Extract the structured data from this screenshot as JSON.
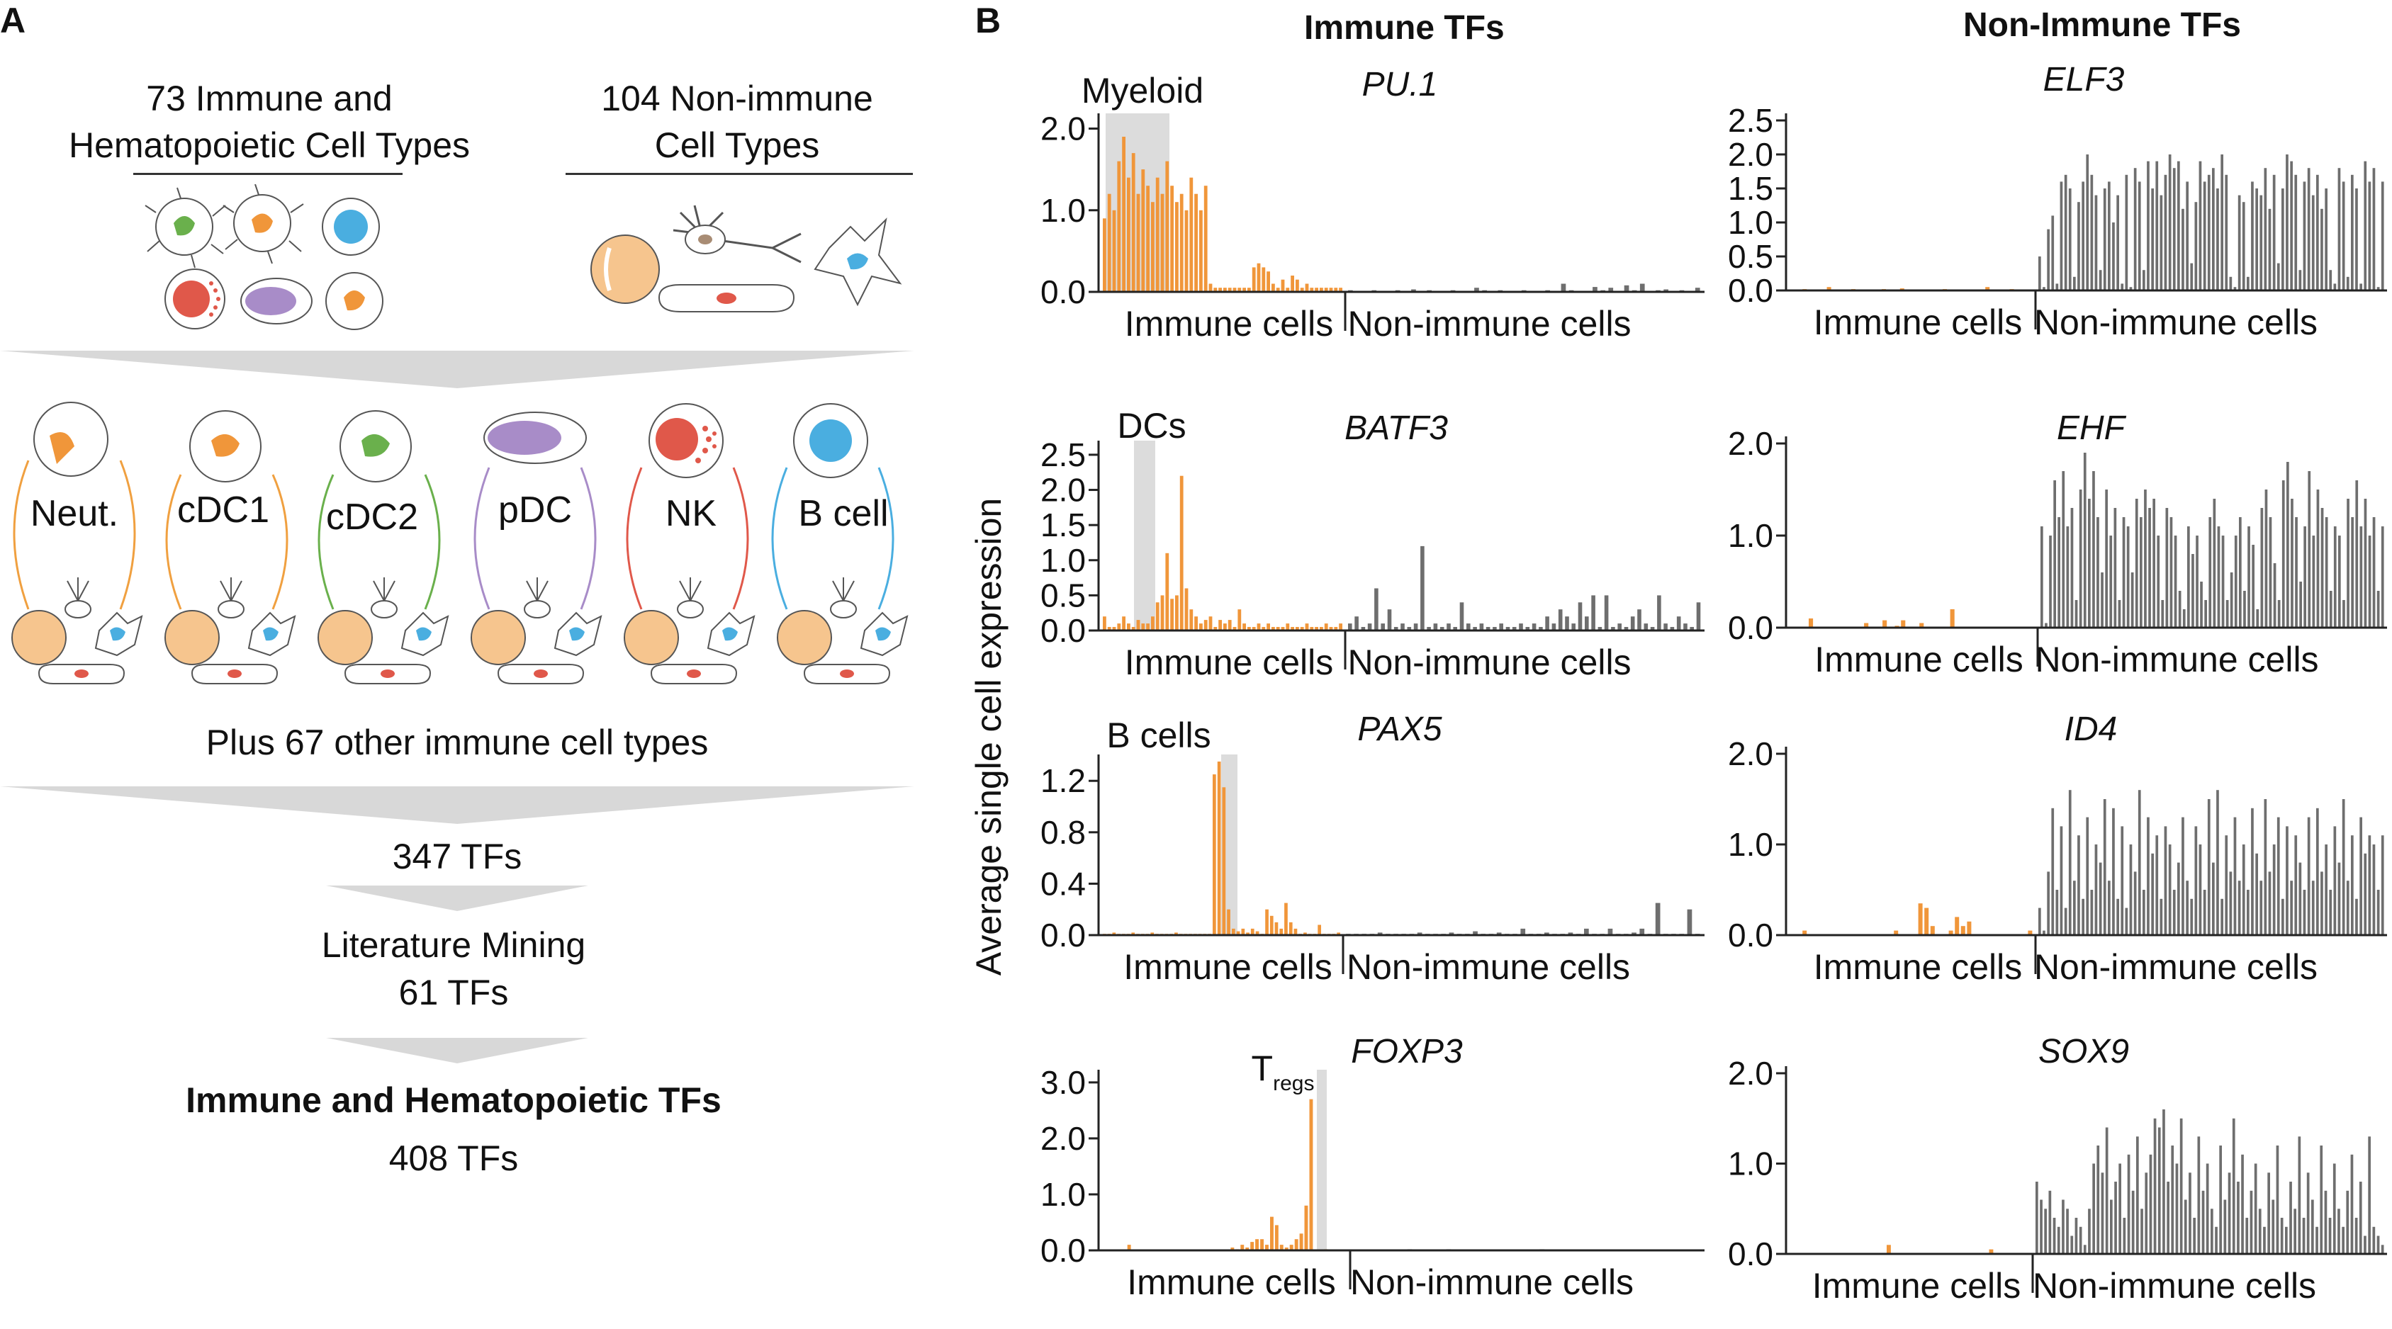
{
  "panel_a": {
    "letter": "A",
    "immune_title": "73 Immune and\nHematopoietic Cell Types",
    "nonimmune_title": "104 Non-immune\nCell Types",
    "cell_types": [
      "Neut.",
      "cDC1",
      "cDC2",
      "pDC",
      "NK",
      "B cell"
    ],
    "plus_other": "Plus 67 other immune cell types",
    "step1": "347 TFs",
    "step2a": "Literature Mining",
    "step2b": "61 TFs",
    "final_title": "Immune and Hematopoietic TFs",
    "final_count": "408 TFs",
    "colors": {
      "orange": "#f0a040",
      "green": "#6ab04c",
      "purple": "#a88cc8",
      "red": "#e0584a",
      "blue": "#4aaee0",
      "grey_arrow": "#d8d8d8"
    }
  },
  "panel_b": {
    "letter": "B",
    "col_immune": "Immune TFs",
    "col_nonimmune": "Non-Immune TFs",
    "y_axis_label": "Average single cell expression",
    "x_immune": "Immune cells",
    "x_nonimmune": "Non-immune cells",
    "colors": {
      "immune": "#f0963a",
      "nonimmune": "#6e6e6e",
      "highlight": "#dcdcdc"
    }
  },
  "chart_data": [
    {
      "type": "bar",
      "gene": "PU.1",
      "highlight": "Myeloid",
      "yticks": [
        "2.0",
        "1.0",
        "0.0"
      ],
      "ylim": [
        0,
        2.1
      ],
      "immune_values": [
        0.9,
        1.2,
        1.0,
        1.6,
        1.9,
        1.4,
        1.7,
        1.2,
        1.5,
        1.3,
        1.1,
        1.4,
        1.2,
        1.6,
        1.3,
        1.1,
        1.2,
        1.0,
        1.4,
        1.2,
        1.0,
        1.3,
        0.1,
        0.05,
        0.05,
        0.05,
        0.05,
        0.05,
        0.05,
        0.05,
        0.05,
        0.3,
        0.35,
        0.3,
        0.25,
        0.1,
        0.05,
        0.15,
        0.05,
        0.2,
        0.15,
        0.05,
        0.1,
        0.05,
        0.05,
        0.05,
        0.05,
        0.05,
        0.05,
        0.05
      ],
      "nonimmune_values": [
        0.02,
        0.01,
        0.01,
        0.02,
        0.01,
        0.01,
        0.02,
        0.01,
        0.03,
        0.01,
        0.02,
        0.01,
        0.01,
        0.02,
        0.01,
        0.01,
        0.05,
        0.02,
        0.01,
        0.02,
        0.01,
        0.01,
        0.02,
        0.01,
        0.01,
        0.02,
        0.01,
        0.1,
        0.02,
        0.01,
        0.01,
        0.06,
        0.02,
        0.05,
        0.01,
        0.08,
        0.02,
        0.1,
        0.01,
        0.02,
        0.03,
        0.01,
        0.02,
        0.01,
        0.05
      ]
    },
    {
      "type": "bar",
      "gene": "BATF3",
      "highlight": "DCs",
      "yticks": [
        "2.5",
        "2.0",
        "1.5",
        "1.0",
        "0.5",
        "0.0"
      ],
      "ylim": [
        0,
        2.6
      ],
      "immune_values": [
        0.2,
        0.05,
        0.05,
        0.1,
        0.2,
        0.1,
        0.05,
        0.15,
        0.1,
        0.1,
        0.2,
        0.4,
        0.5,
        1.1,
        0.45,
        0.5,
        2.2,
        0.6,
        0.3,
        0.2,
        0.1,
        0.15,
        0.2,
        0.05,
        0.15,
        0.1,
        0.15,
        0.05,
        0.3,
        0.1,
        0.05,
        0.05,
        0.1,
        0.05,
        0.1,
        0.05,
        0.05,
        0.05,
        0.1,
        0.05,
        0.05,
        0.05,
        0.1,
        0.05,
        0.05,
        0.05,
        0.1,
        0.05,
        0.05,
        0.1
      ],
      "nonimmune_values": [
        0.1,
        0.2,
        0.05,
        0.1,
        0.6,
        0.1,
        0.3,
        0.05,
        0.1,
        0.05,
        0.1,
        1.2,
        0.05,
        0.1,
        0.05,
        0.1,
        0.05,
        0.4,
        0.1,
        0.05,
        0.1,
        0.05,
        0.05,
        0.1,
        0.05,
        0.05,
        0.1,
        0.05,
        0.1,
        0.05,
        0.2,
        0.1,
        0.3,
        0.2,
        0.1,
        0.4,
        0.2,
        0.5,
        0.05,
        0.5,
        0.05,
        0.1,
        0.05,
        0.2,
        0.3,
        0.1,
        0.05,
        0.5,
        0.1,
        0.05,
        0.2,
        0.1,
        0.05,
        0.4
      ]
    },
    {
      "type": "bar",
      "gene": "PAX5",
      "highlight": "B cells",
      "yticks": [
        "1.2",
        "0.8",
        "0.4",
        "0.0"
      ],
      "ylim": [
        0,
        1.35
      ],
      "immune_values": [
        0.01,
        0.01,
        0.02,
        0.01,
        0.01,
        0.01,
        0.02,
        0.01,
        0.01,
        0.01,
        0.02,
        0.01,
        0.01,
        0.01,
        0.01,
        0.02,
        0.01,
        0.01,
        0.01,
        0.01,
        0.01,
        0.01,
        0.01,
        1.25,
        1.35,
        1.15,
        0.2,
        0.05,
        0.03,
        0.05,
        0.02,
        0.05,
        0.03,
        0.01,
        0.2,
        0.15,
        0.1,
        0.05,
        0.25,
        0.1,
        0.05,
        0.01,
        0.02,
        0.01,
        0.01,
        0.08,
        0.01,
        0.01,
        0.01,
        0.02
      ],
      "nonimmune_values": [
        0.01,
        0.01,
        0.01,
        0.01,
        0.02,
        0.01,
        0.01,
        0.01,
        0.01,
        0.02,
        0.01,
        0.01,
        0.01,
        0.02,
        0.01,
        0.01,
        0.03,
        0.01,
        0.01,
        0.02,
        0.01,
        0.01,
        0.05,
        0.01,
        0.01,
        0.02,
        0.01,
        0.01,
        0.02,
        0.01,
        0.05,
        0.01,
        0.01,
        0.05,
        0.01,
        0.01,
        0.02,
        0.05,
        0.01,
        0.25,
        0.01,
        0.01,
        0.01,
        0.2,
        0.01
      ]
    },
    {
      "type": "bar",
      "gene": "FOXP3",
      "highlight": "Tregs",
      "yticks": [
        "3.0",
        "2.0",
        "1.0",
        "0.0"
      ],
      "ylim": [
        0,
        3.1
      ],
      "immune_values": [
        0.01,
        0.01,
        0.01,
        0.01,
        0.01,
        0.1,
        0.01,
        0.01,
        0.01,
        0.01,
        0.01,
        0.01,
        0.01,
        0.01,
        0.01,
        0.01,
        0.01,
        0.01,
        0.01,
        0.01,
        0.01,
        0.01,
        0.01,
        0.01,
        0.01,
        0.01,
        0.05,
        0.02,
        0.1,
        0.05,
        0.15,
        0.2,
        0.2,
        0.1,
        0.6,
        0.45,
        0.1,
        0.05,
        0.1,
        0.2,
        0.3,
        0.8,
        2.7,
        0.01,
        0.01,
        0.02,
        0.01,
        0.01,
        0.01,
        0.01
      ],
      "nonimmune_values": [
        0.01,
        0.01,
        0.01,
        0.01,
        0.01,
        0.01,
        0.01,
        0.02,
        0.01,
        0.01,
        0.01,
        0.01,
        0.02,
        0.01,
        0.01,
        0.01,
        0.01,
        0.01,
        0.01,
        0.01,
        0.01,
        0.01,
        0.01,
        0.01,
        0.02,
        0.01,
        0.01,
        0.01,
        0.01,
        0.01,
        0.01,
        0.01,
        0.01,
        0.01,
        0.01,
        0.01,
        0.01,
        0.01,
        0.01,
        0.01,
        0.01,
        0.01,
        0.01,
        0.01,
        0.01
      ]
    },
    {
      "type": "bar",
      "gene": "ELF3",
      "highlight": "",
      "yticks": [
        "2.5",
        "2.0",
        "1.5",
        "1.0",
        "0.5",
        "0.0"
      ],
      "ylim": [
        0,
        2.5
      ],
      "immune_values": [
        0.01,
        0.01,
        0.02,
        0.01,
        0.01,
        0.01,
        0.05,
        0.01,
        0.01,
        0.01,
        0.02,
        0.01,
        0.01,
        0.01,
        0.01,
        0.02,
        0.01,
        0.01,
        0.03,
        0.01,
        0.01,
        0.01,
        0.01,
        0.01,
        0.01,
        0.02,
        0.01,
        0.01,
        0.01,
        0.01,
        0.01,
        0.01,
        0.05,
        0.01,
        0.01,
        0.01,
        0.02,
        0.01,
        0.01,
        0.01
      ],
      "nonimmune_values": [
        0.5,
        0.05,
        0.9,
        1.1,
        0.1,
        1.6,
        1.7,
        1.5,
        0.2,
        1.3,
        1.6,
        2.0,
        1.7,
        1.4,
        0.3,
        1.5,
        1.6,
        1.0,
        1.4,
        0.1,
        1.7,
        0.05,
        1.8,
        1.6,
        0.3,
        1.9,
        1.5,
        1.9,
        1.4,
        1.7,
        2.0,
        1.8,
        1.9,
        1.2,
        1.6,
        0.4,
        1.3,
        1.9,
        1.6,
        1.7,
        1.8,
        1.5,
        2.0,
        1.7,
        0.2,
        0.05,
        1.4,
        1.3,
        0.2,
        1.6,
        1.5,
        1.4,
        1.8,
        1.2,
        1.7,
        0.4,
        1.5,
        2.0,
        1.9,
        1.7,
        0.3,
        1.6,
        1.8,
        1.4,
        1.7,
        1.2,
        1.5,
        0.3,
        0.1,
        1.8,
        1.6,
        0.2,
        1.7,
        1.5,
        0.1,
        1.9,
        1.6,
        1.8,
        0.05,
        1.6
      ]
    },
    {
      "type": "bar",
      "gene": "EHF",
      "highlight": "",
      "yticks": [
        "2.0",
        "1.0",
        "0.0"
      ],
      "ylim": [
        0,
        2.0
      ],
      "immune_values": [
        0.01,
        0.01,
        0.01,
        0.1,
        0.01,
        0.01,
        0.01,
        0.01,
        0.01,
        0.01,
        0.01,
        0.01,
        0.05,
        0.01,
        0.01,
        0.08,
        0.01,
        0.02,
        0.08,
        0.01,
        0.01,
        0.05,
        0.01,
        0.01,
        0.01,
        0.01,
        0.2,
        0.01,
        0.01,
        0.01,
        0.01,
        0.01,
        0.01,
        0.01,
        0.01,
        0.01,
        0.01,
        0.01,
        0.01,
        0.01
      ],
      "nonimmune_values": [
        1.1,
        0.05,
        1.0,
        1.6,
        1.2,
        1.7,
        1.1,
        1.3,
        0.3,
        1.5,
        1.9,
        1.4,
        1.7,
        1.2,
        0.6,
        1.5,
        1.0,
        1.3,
        0.3,
        1.2,
        1.1,
        0.6,
        1.4,
        1.2,
        1.5,
        1.3,
        1.4,
        1.0,
        0.3,
        1.3,
        1.2,
        1.0,
        0.4,
        0.2,
        1.1,
        0.8,
        1.0,
        0.5,
        0.3,
        1.2,
        1.4,
        1.1,
        1.0,
        0.3,
        0.6,
        1.0,
        1.2,
        0.4,
        1.1,
        0.9,
        0.2,
        1.3,
        1.5,
        1.2,
        0.7,
        0.3,
        1.6,
        1.8,
        1.4,
        1.2,
        0.5,
        1.1,
        1.7,
        1.0,
        1.5,
        1.3,
        1.2,
        0.4,
        1.1,
        1.0,
        0.3,
        1.4,
        1.2,
        1.6,
        1.1,
        1.4,
        1.0,
        1.2,
        0.4,
        1.1
      ]
    },
    {
      "type": "bar",
      "gene": "ID4",
      "highlight": "",
      "yticks": [
        "2.0",
        "1.0",
        "0.0"
      ],
      "ylim": [
        0,
        2.0
      ],
      "immune_values": [
        0.01,
        0.01,
        0.05,
        0.01,
        0.01,
        0.01,
        0.01,
        0.01,
        0.01,
        0.01,
        0.01,
        0.01,
        0.01,
        0.01,
        0.01,
        0.01,
        0.01,
        0.05,
        0.01,
        0.01,
        0.01,
        0.35,
        0.3,
        0.1,
        0.01,
        0.01,
        0.05,
        0.2,
        0.1,
        0.15,
        0.01,
        0.01,
        0.01,
        0.01,
        0.01,
        0.01,
        0.01,
        0.01,
        0.01,
        0.05
      ],
      "nonimmune_values": [
        0.3,
        0.05,
        0.7,
        1.4,
        0.5,
        1.2,
        0.3,
        1.6,
        0.6,
        1.1,
        0.4,
        1.3,
        0.5,
        1.0,
        0.8,
        1.5,
        0.6,
        1.4,
        0.4,
        1.2,
        0.3,
        1.0,
        0.7,
        1.6,
        0.5,
        1.3,
        0.9,
        1.1,
        0.4,
        1.2,
        1.0,
        0.5,
        0.8,
        1.3,
        0.6,
        0.4,
        1.2,
        1.0,
        0.5,
        1.5,
        0.8,
        1.6,
        0.4,
        1.1,
        0.7,
        1.3,
        0.6,
        1.0,
        0.5,
        1.4,
        0.9,
        0.6,
        1.5,
        0.7,
        1.0,
        1.3,
        0.4,
        1.2,
        0.6,
        1.1,
        0.8,
        0.5,
        1.3,
        0.6,
        1.4,
        0.7,
        1.0,
        0.5,
        1.2,
        0.8,
        1.5,
        0.6,
        1.1,
        0.4,
        1.3,
        0.9,
        1.1,
        1.0,
        0.5,
        1.1
      ]
    },
    {
      "type": "bar",
      "gene": "SOX9",
      "highlight": "",
      "yticks": [
        "2.0",
        "1.0",
        "0.0"
      ],
      "ylim": [
        0,
        2.0
      ],
      "immune_values": [
        0.01,
        0.01,
        0.01,
        0.01,
        0.01,
        0.01,
        0.01,
        0.01,
        0.01,
        0.01,
        0.01,
        0.01,
        0.01,
        0.01,
        0.01,
        0.01,
        0.1,
        0.01,
        0.01,
        0.01,
        0.01,
        0.01,
        0.01,
        0.01,
        0.01,
        0.01,
        0.01,
        0.01,
        0.01,
        0.01,
        0.01,
        0.01,
        0.01,
        0.05,
        0.01,
        0.01,
        0.01,
        0.01,
        0.01,
        0.01
      ],
      "nonimmune_values": [
        0.8,
        0.6,
        0.5,
        0.7,
        0.4,
        0.3,
        0.6,
        0.5,
        0.2,
        0.4,
        0.3,
        0.1,
        0.5,
        1.0,
        1.2,
        0.9,
        1.4,
        0.6,
        0.8,
        1.0,
        0.4,
        1.1,
        0.7,
        1.3,
        0.5,
        0.9,
        1.1,
        1.5,
        1.4,
        1.6,
        0.8,
        1.2,
        1.0,
        1.5,
        0.6,
        0.9,
        0.4,
        1.3,
        0.7,
        1.0,
        0.5,
        0.3,
        1.2,
        0.6,
        0.9,
        1.5,
        0.8,
        1.1,
        0.4,
        0.7,
        1.0,
        0.5,
        0.3,
        0.9,
        0.6,
        1.2,
        0.4,
        0.3,
        0.8,
        0.5,
        1.3,
        0.4,
        0.9,
        0.6,
        0.3,
        1.2,
        0.7,
        0.4,
        1.0,
        0.5,
        0.3,
        0.7,
        1.1,
        0.4,
        0.8,
        0.2,
        1.3,
        0.3,
        0.2,
        0.1
      ]
    }
  ]
}
